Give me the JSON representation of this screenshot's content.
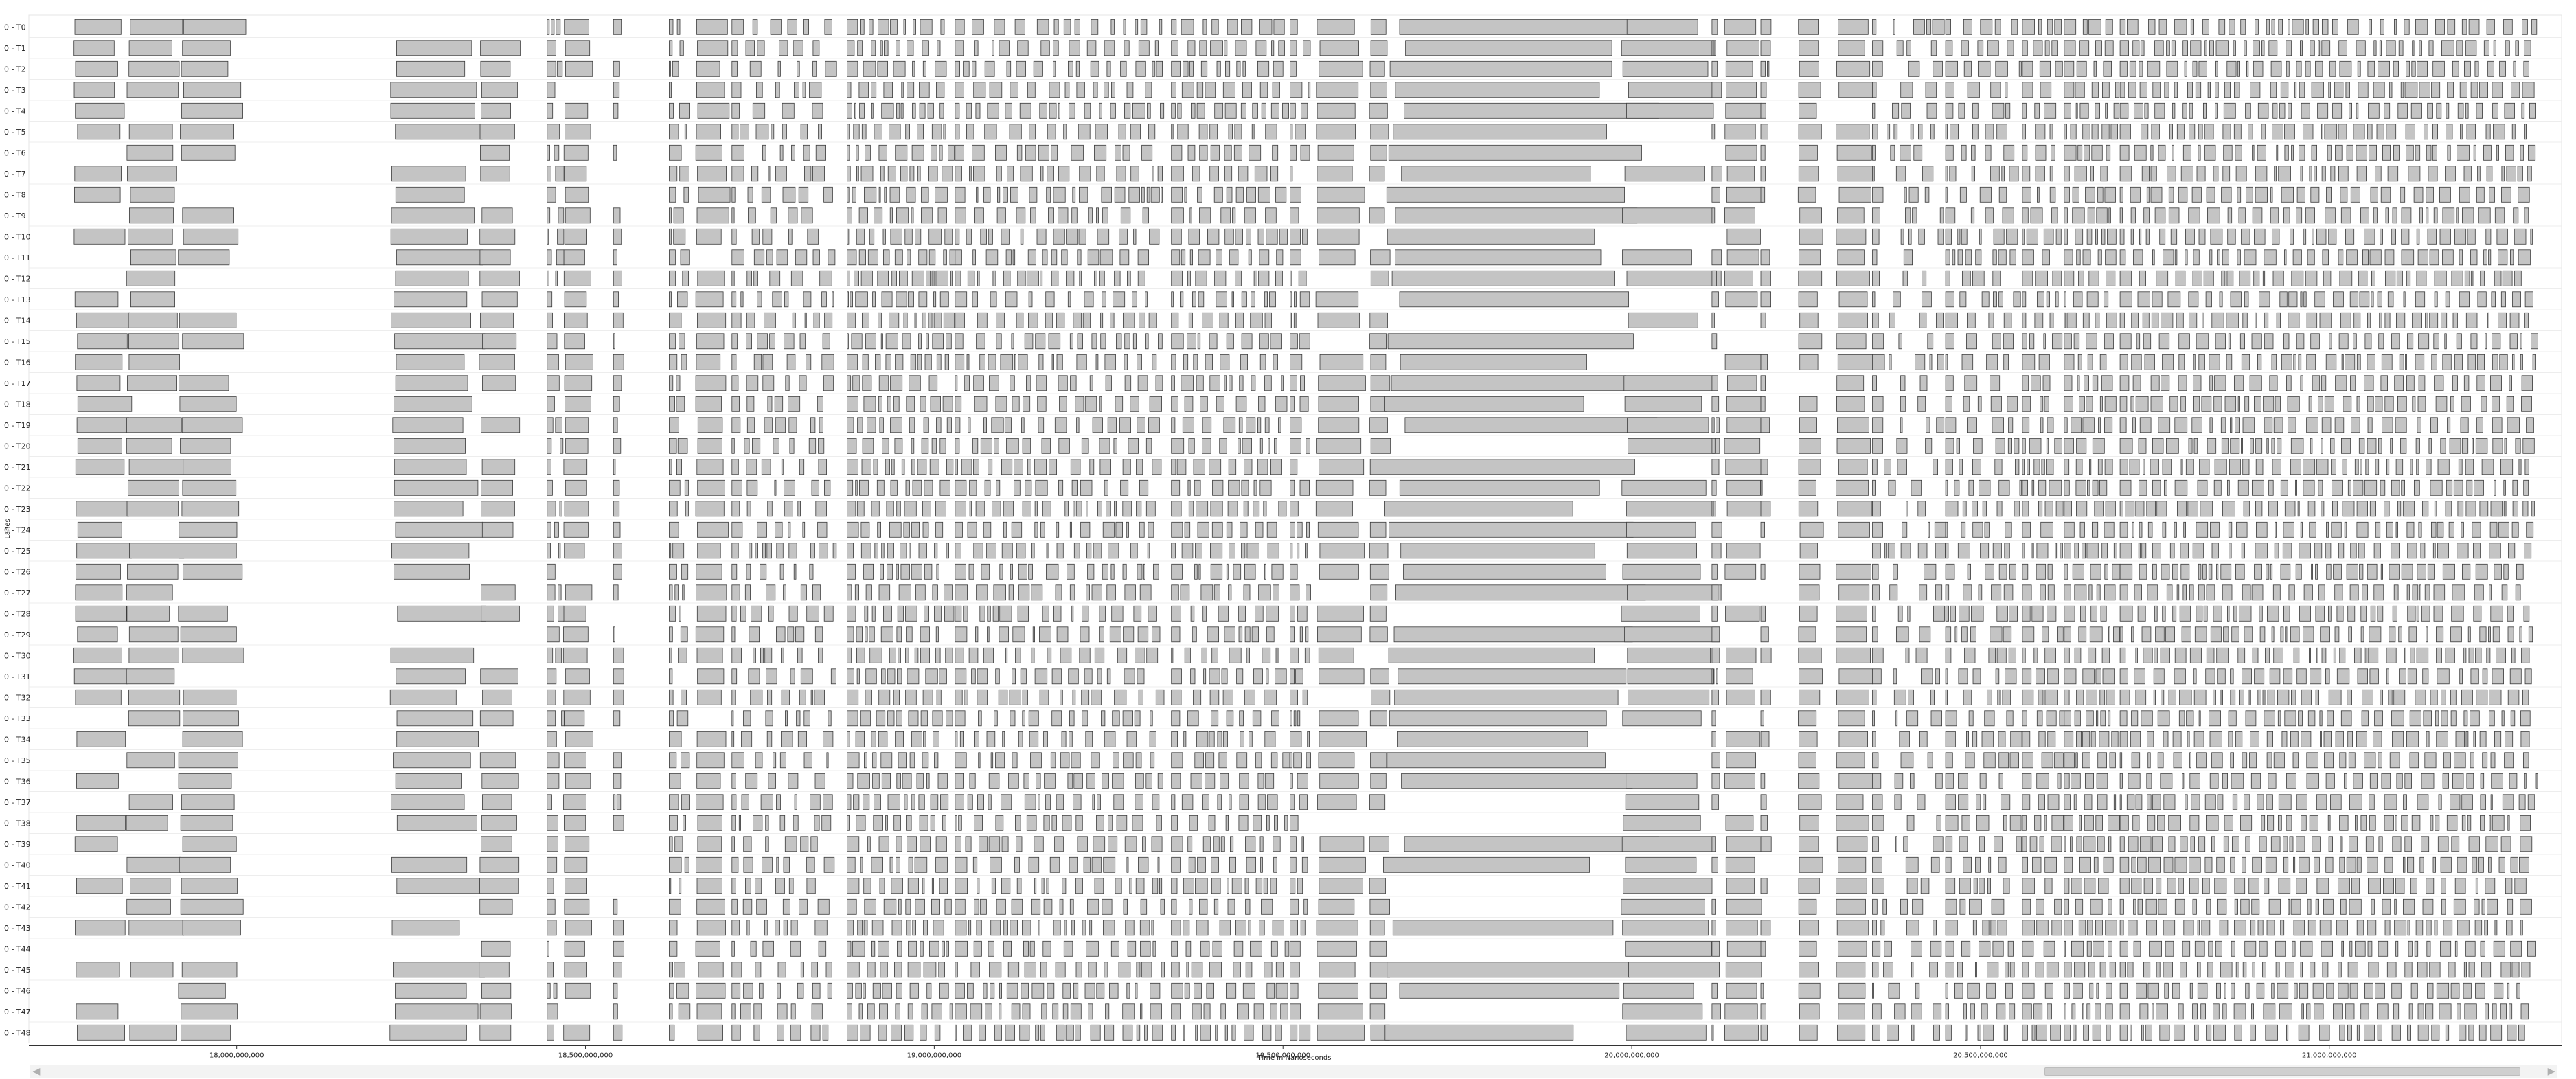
{
  "chart_data": {
    "type": "timeline",
    "ylabel": "Lanes",
    "xlabel": "Time in Nanoseconds",
    "x_ticks": [
      {
        "value": 18000000000,
        "label": "18,000,000,000"
      },
      {
        "value": 18500000000,
        "label": "18,500,000,000"
      },
      {
        "value": 19000000000,
        "label": "19,000,000,000"
      },
      {
        "value": 19500000000,
        "label": "19,500,000,000"
      },
      {
        "value": 20000000000,
        "label": "20,000,000,000"
      },
      {
        "value": 20500000000,
        "label": "20,500,000,000"
      },
      {
        "value": 21000000000,
        "label": "21,000,000,000"
      }
    ],
    "xlim": [
      17702000000,
      21333000000
    ],
    "lanes": [
      "0 - T0",
      "0 - T1",
      "0 - T2",
      "0 - T3",
      "0 - T4",
      "0 - T5",
      "0 - T6",
      "0 - T7",
      "0 - T8",
      "0 - T9",
      "0 - T10",
      "0 - T11",
      "0 - T12",
      "0 - T13",
      "0 - T14",
      "0 - T15",
      "0 - T16",
      "0 - T17",
      "0 - T18",
      "0 - T19",
      "0 - T20",
      "0 - T21",
      "0 - T22",
      "0 - T23",
      "0 - T24",
      "0 - T25",
      "0 - T26",
      "0 - T27",
      "0 - T28",
      "0 - T29",
      "0 - T30",
      "0 - T31",
      "0 - T32",
      "0 - T33",
      "0 - T34",
      "0 - T35",
      "0 - T36",
      "0 - T37",
      "0 - T38",
      "0 - T39",
      "0 - T40",
      "0 - T41",
      "0 - T42",
      "0 - T43",
      "0 - T44",
      "0 - T45",
      "0 - T46",
      "0 - T47",
      "0 - T48"
    ],
    "bar_fill": "#c4c4c4",
    "bar_stroke": "#3a3a3a",
    "segments": [
      [
        17770000000,
        17840000000
      ],
      [
        17845000000,
        17915000000
      ],
      [
        17920000000,
        18000000000
      ],
      [
        18225000000,
        18340000000
      ],
      [
        18350000000,
        18400000000
      ],
      [
        18470000000,
        18505000000
      ],
      [
        18660000000,
        18700000000
      ],
      [
        19550000000,
        19610000000
      ],
      [
        19625000000,
        19650000000
      ],
      [
        19660000000,
        19985000000
      ],
      [
        19990000000,
        20110000000
      ],
      [
        20135000000,
        20180000000
      ],
      [
        20240000000,
        20270000000
      ],
      [
        20295000000,
        20340000000
      ]
    ],
    "dense_regions": [
      {
        "x": [
          18445000000,
          18470000000
        ],
        "density": 0.22
      },
      {
        "x": [
          18540000000,
          18555000000
        ],
        "density": 0.2
      },
      {
        "x": [
          18620000000,
          18650000000
        ],
        "density": 0.28
      },
      {
        "x": [
          18710000000,
          18860000000
        ],
        "density": 0.12
      },
      {
        "x": [
          18875000000,
          19030000000
        ],
        "density": 0.26
      },
      {
        "x": [
          19030000000,
          19330000000
        ],
        "density": 0.16
      },
      {
        "x": [
          19340000000,
          19510000000
        ],
        "density": 0.18
      },
      {
        "x": [
          19510000000,
          19540000000
        ],
        "density": 0.35
      },
      {
        "x": [
          20115000000,
          20130000000
        ],
        "density": 0.3
      },
      {
        "x": [
          20185000000,
          20200000000
        ],
        "density": 0.3
      },
      {
        "x": [
          20345000000,
          20450000000
        ],
        "density": 0.08
      },
      {
        "x": [
          20450000000,
          20560000000
        ],
        "density": 0.14
      },
      {
        "x": [
          20560000000,
          20620000000
        ],
        "density": 0.2
      },
      {
        "x": [
          20620000000,
          20700000000
        ],
        "density": 0.32
      },
      {
        "x": [
          20700000000,
          21300000000
        ],
        "density": 0.22
      }
    ]
  },
  "scrollbar": {
    "left_arrow": "◀",
    "right_arrow": "▶",
    "thumb_start": 0.8,
    "thumb_end": 0.99
  }
}
